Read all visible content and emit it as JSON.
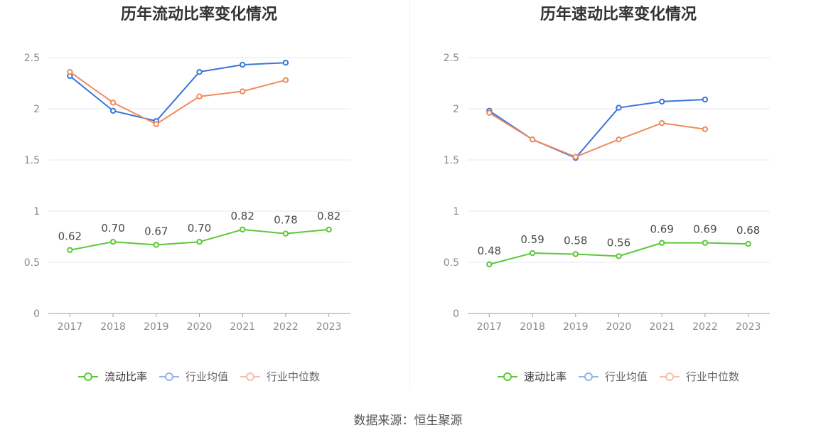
{
  "chart_data": [
    {
      "type": "line",
      "title": "历年流动比率变化情况",
      "categories": [
        "2017",
        "2018",
        "2019",
        "2020",
        "2021",
        "2022",
        "2023"
      ],
      "y_ticks": [
        "0",
        "0.5",
        "1",
        "1.5",
        "2",
        "2.5"
      ],
      "ylim": [
        0,
        2.5
      ],
      "grid": true,
      "legend_position": "bottom",
      "series": [
        {
          "name": "流动比率",
          "color": "#5cc83a",
          "values": [
            0.62,
            0.7,
            0.67,
            0.7,
            0.82,
            0.78,
            0.82
          ],
          "labels": [
            "0.62",
            "0.70",
            "0.67",
            "0.70",
            "0.82",
            "0.78",
            "0.82"
          ]
        },
        {
          "name": "行业均值",
          "color": "#3a76db",
          "values": [
            2.32,
            1.98,
            1.88,
            2.36,
            2.43,
            2.45,
            null
          ]
        },
        {
          "name": "行业中位数",
          "color": "#f08a5d",
          "values": [
            2.36,
            2.06,
            1.85,
            2.12,
            2.17,
            2.28,
            null
          ]
        }
      ]
    },
    {
      "type": "line",
      "title": "历年速动比率变化情况",
      "categories": [
        "2017",
        "2018",
        "2019",
        "2020",
        "2021",
        "2022",
        "2023"
      ],
      "y_ticks": [
        "0",
        "0.5",
        "1",
        "1.5",
        "2",
        "2.5"
      ],
      "ylim": [
        0,
        2.5
      ],
      "grid": true,
      "legend_position": "bottom",
      "series": [
        {
          "name": "速动比率",
          "color": "#5cc83a",
          "values": [
            0.48,
            0.59,
            0.58,
            0.56,
            0.69,
            0.69,
            0.68
          ],
          "labels": [
            "0.48",
            "0.59",
            "0.58",
            "0.56",
            "0.69",
            "0.69",
            "0.68"
          ]
        },
        {
          "name": "行业均值",
          "color": "#3a76db",
          "values": [
            1.98,
            1.7,
            1.52,
            2.01,
            2.07,
            2.09,
            null
          ]
        },
        {
          "name": "行业中位数",
          "color": "#f08a5d",
          "values": [
            1.96,
            1.7,
            1.53,
            1.7,
            1.86,
            1.8,
            null
          ]
        }
      ]
    }
  ],
  "source": "数据来源：恒生聚源"
}
